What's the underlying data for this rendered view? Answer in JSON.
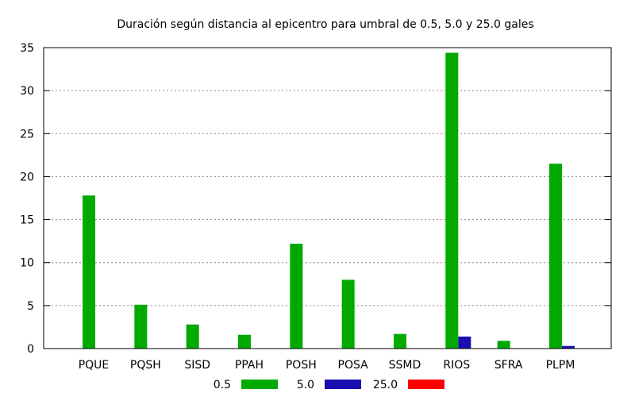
{
  "chart_data": {
    "type": "bar",
    "title": "Duración según distancia al epicentro para umbral de 0.5, 5.0 y 25.0 gales",
    "xlabel": "",
    "ylabel": "",
    "categories": [
      "PQUE",
      "PQSH",
      "SISD",
      "PPAH",
      "POSH",
      "POSA",
      "SSMD",
      "RIOS",
      "SFRA",
      "PLPM"
    ],
    "series": [
      {
        "name": "0.5",
        "color": "#00aa00",
        "values": [
          17.8,
          5.1,
          2.8,
          1.6,
          12.2,
          8.0,
          1.7,
          34.4,
          0.9,
          21.5
        ]
      },
      {
        "name": "5.0",
        "color": "#1a0fb0",
        "values": [
          0,
          0,
          0,
          0,
          0,
          0,
          0,
          1.4,
          0,
          0.3
        ]
      },
      {
        "name": "25.0",
        "color": "#ff0000",
        "values": [
          0,
          0,
          0,
          0,
          0,
          0,
          0,
          0,
          0,
          0
        ]
      }
    ],
    "ylim": [
      0,
      35
    ],
    "yticks": [
      0,
      5,
      10,
      15,
      20,
      25,
      30,
      35
    ],
    "grid": "horizontal-dotted",
    "legend": "bottom"
  }
}
